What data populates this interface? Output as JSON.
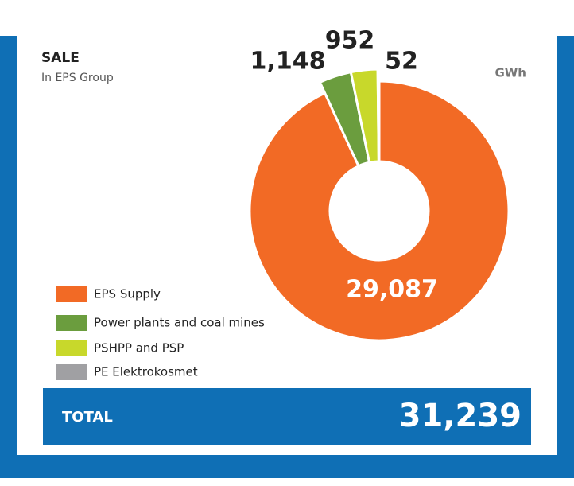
{
  "chart_data": {
    "type": "donut",
    "title": "SALE",
    "subtitle": "In EPS Group",
    "unit": "GWh",
    "categories": [
      "EPS Supply",
      "Power plants and coal mines",
      "PSHPP and PSP",
      "PE Elektrokosmet"
    ],
    "values": [
      29087,
      1148,
      952,
      52
    ],
    "value_labels": [
      "29,087",
      "1,148",
      "952",
      "52"
    ],
    "colors": [
      "#f26a25",
      "#6b9d3e",
      "#c8d82b",
      "#a0a0a3"
    ],
    "total": {
      "title": "TOTAL",
      "value": "31,239"
    }
  }
}
